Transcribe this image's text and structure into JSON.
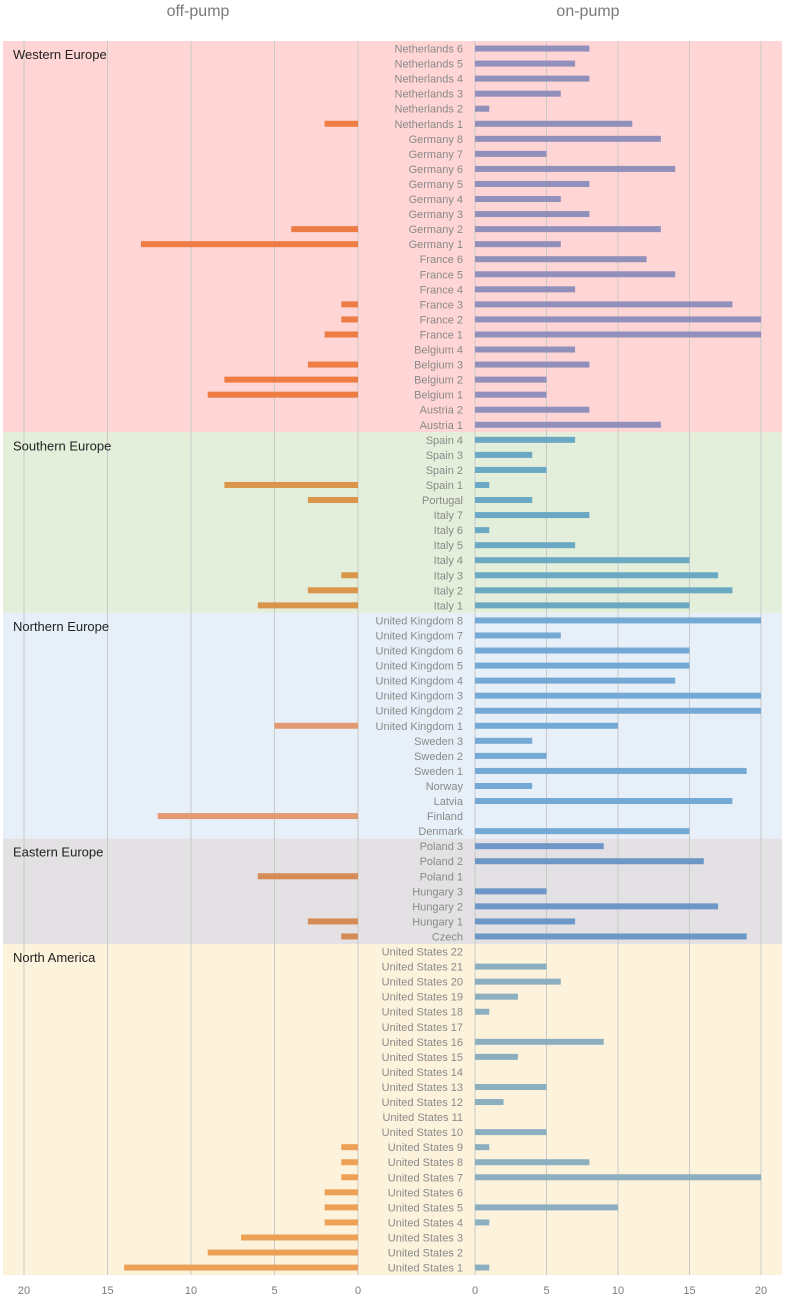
{
  "chart_data": {
    "type": "bar",
    "left_title": "off-pump",
    "right_title": "on-pump",
    "left_ticks": [
      "20",
      "15",
      "10",
      "5",
      "0"
    ],
    "right_ticks": [
      "0",
      "5",
      "10",
      "15",
      "20"
    ],
    "xlim": [
      0,
      20
    ],
    "grid": true,
    "regions": [
      {
        "name": "Western Europe",
        "bg": "#ffd5d5",
        "off_color": "#ed7d45",
        "on_color": "#9090bb",
        "items": [
          {
            "label": "Netherlands 6",
            "off": 0,
            "on": 8
          },
          {
            "label": "Netherlands 5",
            "off": 0,
            "on": 7
          },
          {
            "label": "Netherlands 4",
            "off": 0,
            "on": 8
          },
          {
            "label": "Netherlands 3",
            "off": 0,
            "on": 6
          },
          {
            "label": "Netherlands 2",
            "off": 0,
            "on": 1
          },
          {
            "label": "Netherlands 1",
            "off": 2,
            "on": 11
          },
          {
            "label": "Germany 8",
            "off": 0,
            "on": 13
          },
          {
            "label": "Germany 7",
            "off": 0,
            "on": 5
          },
          {
            "label": "Germany 6",
            "off": 0,
            "on": 14
          },
          {
            "label": "Germany 5",
            "off": 0,
            "on": 8
          },
          {
            "label": "Germany 4",
            "off": 0,
            "on": 6
          },
          {
            "label": "Germany 3",
            "off": 0,
            "on": 8
          },
          {
            "label": "Germany 2",
            "off": 4,
            "on": 13
          },
          {
            "label": "Germany 1",
            "off": 13,
            "on": 6
          },
          {
            "label": "France 6",
            "off": 0,
            "on": 12
          },
          {
            "label": "France 5",
            "off": 0,
            "on": 14
          },
          {
            "label": "France 4",
            "off": 0,
            "on": 7
          },
          {
            "label": "France 3",
            "off": 1,
            "on": 18
          },
          {
            "label": "France 2",
            "off": 1,
            "on": 20
          },
          {
            "label": "France 1",
            "off": 2,
            "on": 20
          },
          {
            "label": "Belgium 4",
            "off": 0,
            "on": 7
          },
          {
            "label": "Belgium 3",
            "off": 3,
            "on": 8
          },
          {
            "label": "Belgium 2",
            "off": 8,
            "on": 5
          },
          {
            "label": "Belgium 1",
            "off": 9,
            "on": 5
          },
          {
            "label": "Austria 2",
            "off": 0,
            "on": 8
          },
          {
            "label": "Austria 1",
            "off": 0,
            "on": 13
          }
        ]
      },
      {
        "name": "Southern Europe",
        "bg": "#e3efda",
        "off_color": "#d9954a",
        "on_color": "#6aa8c4",
        "items": [
          {
            "label": "Spain 4",
            "off": 0,
            "on": 7
          },
          {
            "label": "Spain 3",
            "off": 0,
            "on": 4
          },
          {
            "label": "Spain 2",
            "off": 0,
            "on": 5
          },
          {
            "label": "Spain 1",
            "off": 8,
            "on": 1
          },
          {
            "label": "Portugal",
            "off": 3,
            "on": 4
          },
          {
            "label": "Italy 7",
            "off": 0,
            "on": 8
          },
          {
            "label": "Italy 6",
            "off": 0,
            "on": 1
          },
          {
            "label": "Italy 5",
            "off": 0,
            "on": 7
          },
          {
            "label": "Italy 4",
            "off": 0,
            "on": 15
          },
          {
            "label": "Italy 3",
            "off": 1,
            "on": 17
          },
          {
            "label": "Italy 2",
            "off": 3,
            "on": 18
          },
          {
            "label": "Italy 1",
            "off": 6,
            "on": 15
          }
        ]
      },
      {
        "name": "Northern Europe",
        "bg": "#e7f0f9",
        "off_color": "#e29a72",
        "on_color": "#74a9d6",
        "items": [
          {
            "label": "United Kingdom 8",
            "off": 0,
            "on": 20
          },
          {
            "label": "United Kingdom 7",
            "off": 0,
            "on": 6
          },
          {
            "label": "United Kingdom 6",
            "off": 0,
            "on": 15
          },
          {
            "label": "United Kingdom 5",
            "off": 0,
            "on": 15
          },
          {
            "label": "United Kingdom 4",
            "off": 0,
            "on": 14
          },
          {
            "label": "United Kingdom 3",
            "off": 0,
            "on": 20
          },
          {
            "label": "United Kingdom 2",
            "off": 0,
            "on": 20
          },
          {
            "label": "United Kingdom 1",
            "off": 5,
            "on": 10
          },
          {
            "label": "Sweden 3",
            "off": 0,
            "on": 4
          },
          {
            "label": "Sweden 2",
            "off": 0,
            "on": 5
          },
          {
            "label": "Sweden 1",
            "off": 0,
            "on": 19
          },
          {
            "label": "Norway",
            "off": 0,
            "on": 4
          },
          {
            "label": "Latvia",
            "off": 0,
            "on": 18
          },
          {
            "label": "Finland",
            "off": 12,
            "on": 0
          },
          {
            "label": "Denmark",
            "off": 0,
            "on": 15
          }
        ]
      },
      {
        "name": "Eastern Europe",
        "bg": "#e3e1e3",
        "off_color": "#d68a55",
        "on_color": "#6d97c6",
        "items": [
          {
            "label": "Poland 3",
            "off": 0,
            "on": 9
          },
          {
            "label": "Poland 2",
            "off": 0,
            "on": 16
          },
          {
            "label": "Poland 1",
            "off": 6,
            "on": 0
          },
          {
            "label": "Hungary 3",
            "off": 0,
            "on": 5
          },
          {
            "label": "Hungary 2",
            "off": 0,
            "on": 17
          },
          {
            "label": "Hungary 1",
            "off": 3,
            "on": 7
          },
          {
            "label": "Czech",
            "off": 1,
            "on": 19
          }
        ]
      },
      {
        "name": "North America",
        "bg": "#fdf3dc",
        "off_color": "#eda156",
        "on_color": "#8cafc0",
        "items": [
          {
            "label": "United States 22",
            "off": 0,
            "on": 0
          },
          {
            "label": "United States 21",
            "off": 0,
            "on": 5
          },
          {
            "label": "United States 20",
            "off": 0,
            "on": 6
          },
          {
            "label": "United States 19",
            "off": 0,
            "on": 3
          },
          {
            "label": "United States 18",
            "off": 0,
            "on": 1
          },
          {
            "label": "United States 17",
            "off": 0,
            "on": 0
          },
          {
            "label": "United States 16",
            "off": 0,
            "on": 9
          },
          {
            "label": "United States 15",
            "off": 0,
            "on": 3
          },
          {
            "label": "United States 14",
            "off": 0,
            "on": 0
          },
          {
            "label": "United States 13",
            "off": 0,
            "on": 5
          },
          {
            "label": "United States 12",
            "off": 0,
            "on": 2
          },
          {
            "label": "United States 11",
            "off": 0,
            "on": 0
          },
          {
            "label": "United States 10",
            "off": 0,
            "on": 5
          },
          {
            "label": "United States 9",
            "off": 1,
            "on": 1
          },
          {
            "label": "United States 8",
            "off": 1,
            "on": 8
          },
          {
            "label": "United States 7",
            "off": 1,
            "on": 20
          },
          {
            "label": "United States 6",
            "off": 2,
            "on": 0
          },
          {
            "label": "United States 5",
            "off": 2,
            "on": 10
          },
          {
            "label": "United States 4",
            "off": 2,
            "on": 1
          },
          {
            "label": "United States 3",
            "off": 7,
            "on": 0
          },
          {
            "label": "United States 2",
            "off": 9,
            "on": 0
          },
          {
            "label": "United States 1",
            "off": 14,
            "on": 1
          }
        ]
      }
    ]
  }
}
